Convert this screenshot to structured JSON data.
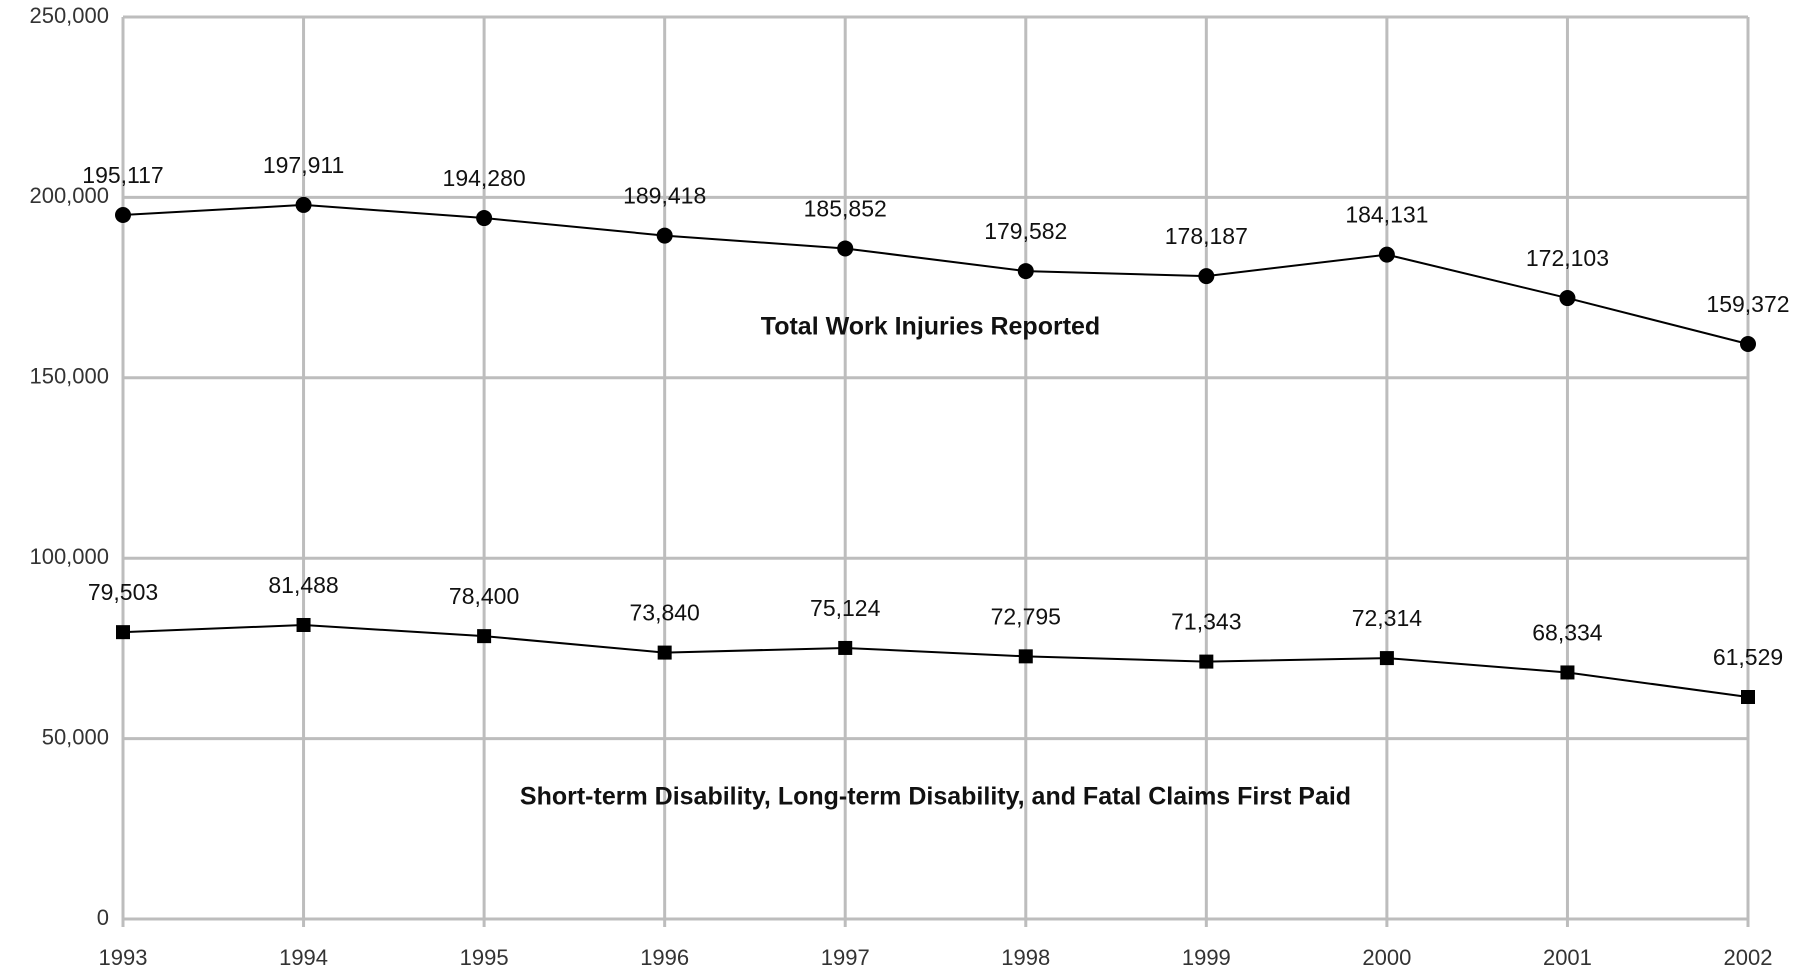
{
  "chart_data": {
    "type": "line",
    "categories": [
      "1993",
      "1994",
      "1995",
      "1996",
      "1997",
      "1998",
      "1999",
      "2000",
      "2001",
      "2002"
    ],
    "series": [
      {
        "name": "Total Work Injuries Reported",
        "color": "#000000",
        "marker": "circle",
        "values": [
          195117,
          197911,
          194280,
          189418,
          185852,
          179582,
          178187,
          184131,
          172103,
          159372
        ],
        "value_labels": [
          "195,117",
          "197,911",
          "194,280",
          "189,418",
          "185,852",
          "179,582",
          "178,187",
          "184,131",
          "172,103",
          "159,372"
        ]
      },
      {
        "name": "Short-term Disability, Long-term Disability, and Fatal Claims First Paid",
        "color": "#000000",
        "marker": "square",
        "values": [
          79503,
          81488,
          78400,
          73840,
          75124,
          72795,
          71343,
          72314,
          68334,
          61529
        ],
        "value_labels": [
          "79,503",
          "81,488",
          "78,400",
          "73,840",
          "75,124",
          "72,795",
          "71,343",
          "72,314",
          "68,334",
          "61,529"
        ]
      }
    ],
    "ylim": [
      0,
      250000
    ],
    "yticks": [
      0,
      {
        "value": 50000,
        "label": "50,000"
      },
      {
        "value": 100000,
        "label": "100,000"
      },
      {
        "value": 150000,
        "label": "150,000"
      },
      {
        "value": 200000,
        "label": "200,000"
      },
      {
        "value": 250000,
        "label": "250,000"
      }
    ],
    "grid": true,
    "grid_color": "#bdbdbd"
  }
}
